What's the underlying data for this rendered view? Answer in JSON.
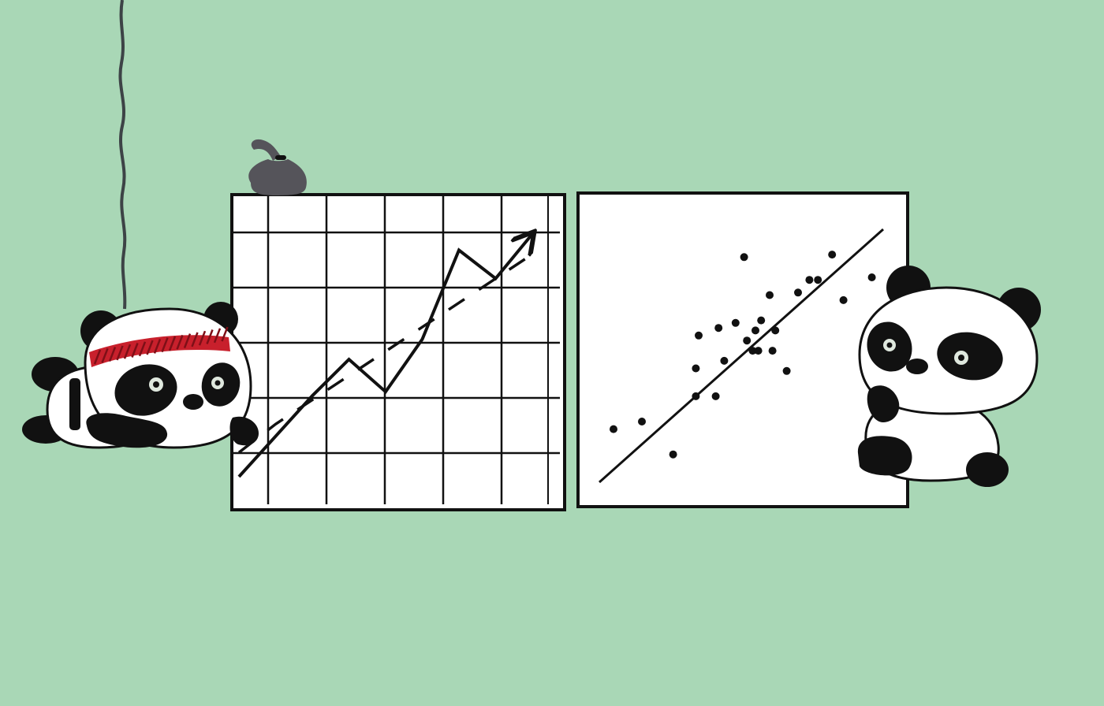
{
  "colors": {
    "background": "#a9d7b6",
    "ink": "#111111",
    "panel": "#ffffff",
    "headband": "#c8202c",
    "headband_dark": "#7e0f17",
    "rope": "#3d4346",
    "bag": "#55545a",
    "eye_iris": "#dfe8de"
  },
  "chart_data": [
    {
      "type": "line",
      "grid": true,
      "axis_ticks_visible": false,
      "x": [
        0,
        1,
        2,
        3,
        4,
        5,
        6,
        7,
        8
      ],
      "series": [
        {
          "style": "solid-arrow",
          "values": [
            0.0,
            1.0,
            2.0,
            2.9,
            2.1,
            3.4,
            5.6,
            4.9,
            6.0
          ]
        },
        {
          "style": "dashed-trend",
          "values": [
            0.6,
            1.3,
            1.9,
            2.5,
            3.1,
            3.7,
            4.3,
            4.9,
            5.5
          ]
        }
      ]
    },
    {
      "type": "scatter",
      "grid": false,
      "axis_ticks_visible": false,
      "trendline": {
        "x": [
          0,
          10
        ],
        "y": [
          0,
          10
        ]
      },
      "points": [
        {
          "x": 0.5,
          "y": 2.1
        },
        {
          "x": 1.5,
          "y": 2.4
        },
        {
          "x": 2.6,
          "y": 1.1
        },
        {
          "x": 3.4,
          "y": 3.4
        },
        {
          "x": 3.5,
          "y": 5.8
        },
        {
          "x": 3.4,
          "y": 4.5
        },
        {
          "x": 4.1,
          "y": 3.4
        },
        {
          "x": 4.2,
          "y": 6.1
        },
        {
          "x": 4.4,
          "y": 4.8
        },
        {
          "x": 4.8,
          "y": 6.3
        },
        {
          "x": 5.1,
          "y": 8.9
        },
        {
          "x": 5.2,
          "y": 5.6
        },
        {
          "x": 5.4,
          "y": 5.2
        },
        {
          "x": 5.5,
          "y": 6.0
        },
        {
          "x": 5.6,
          "y": 5.2
        },
        {
          "x": 5.7,
          "y": 6.4
        },
        {
          "x": 6.0,
          "y": 7.4
        },
        {
          "x": 6.1,
          "y": 5.2
        },
        {
          "x": 6.2,
          "y": 6.0
        },
        {
          "x": 6.6,
          "y": 4.4
        },
        {
          "x": 7.0,
          "y": 7.5
        },
        {
          "x": 7.4,
          "y": 8.0
        },
        {
          "x": 7.7,
          "y": 8.0
        },
        {
          "x": 8.2,
          "y": 9.0
        },
        {
          "x": 8.6,
          "y": 7.2
        },
        {
          "x": 9.6,
          "y": 8.1
        }
      ]
    }
  ]
}
